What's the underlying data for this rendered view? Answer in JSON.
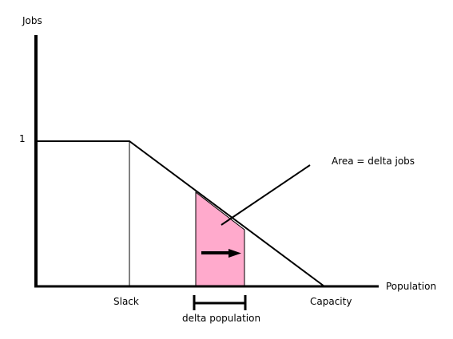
{
  "diagram": {
    "y_axis_label": "Jobs",
    "x_axis_label": "Population",
    "y_tick_label": "1",
    "slack_label": "Slack",
    "capacity_label": "Capacity",
    "area_annotation": "Area = delta jobs",
    "delta_population_label": "delta population"
  },
  "colors": {
    "axis": "#000000",
    "curve": "#000000",
    "shaded_area": "#ffaacc",
    "background": "#ffffff"
  }
}
